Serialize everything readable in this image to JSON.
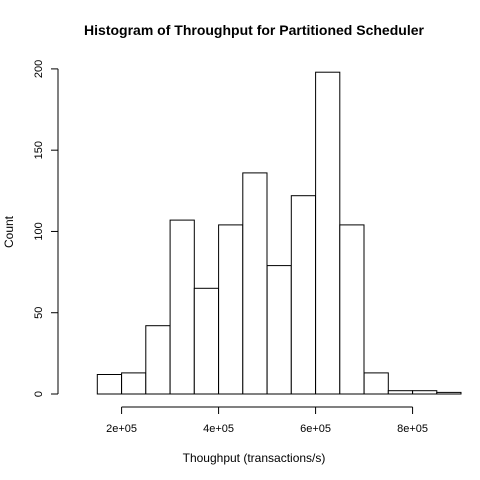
{
  "chart_data": {
    "type": "bar",
    "title": "Histogram of Throughput for Partitioned Scheduler",
    "xlabel": "Thoughput (transactions/s)",
    "ylabel": "Count",
    "bins": [
      [
        150000,
        200000
      ],
      [
        200000,
        250000
      ],
      [
        250000,
        300000
      ],
      [
        300000,
        350000
      ],
      [
        350000,
        400000
      ],
      [
        400000,
        450000
      ],
      [
        450000,
        500000
      ],
      [
        500000,
        550000
      ],
      [
        550000,
        600000
      ],
      [
        600000,
        650000
      ],
      [
        650000,
        700000
      ],
      [
        700000,
        750000
      ],
      [
        750000,
        800000
      ],
      [
        800000,
        850000
      ],
      [
        850000,
        900000
      ],
      [
        900000,
        950000
      ]
    ],
    "values": [
      12,
      13,
      42,
      107,
      65,
      104,
      136,
      79,
      122,
      198,
      104,
      13,
      2,
      2,
      1,
      0
    ],
    "xlim": [
      150000,
      950000
    ],
    "ylim": [
      0,
      210
    ],
    "xticks": [
      {
        "value": 200000,
        "label": "2e+05"
      },
      {
        "value": 400000,
        "label": "4e+05"
      },
      {
        "value": 600000,
        "label": "6e+05"
      },
      {
        "value": 800000,
        "label": "8e+05"
      }
    ],
    "yticks": [
      {
        "value": 0,
        "label": "0"
      },
      {
        "value": 50,
        "label": "50"
      },
      {
        "value": 100,
        "label": "100"
      },
      {
        "value": 150,
        "label": "150"
      },
      {
        "value": 200,
        "label": "200"
      }
    ],
    "grid": false,
    "legend": "none"
  }
}
